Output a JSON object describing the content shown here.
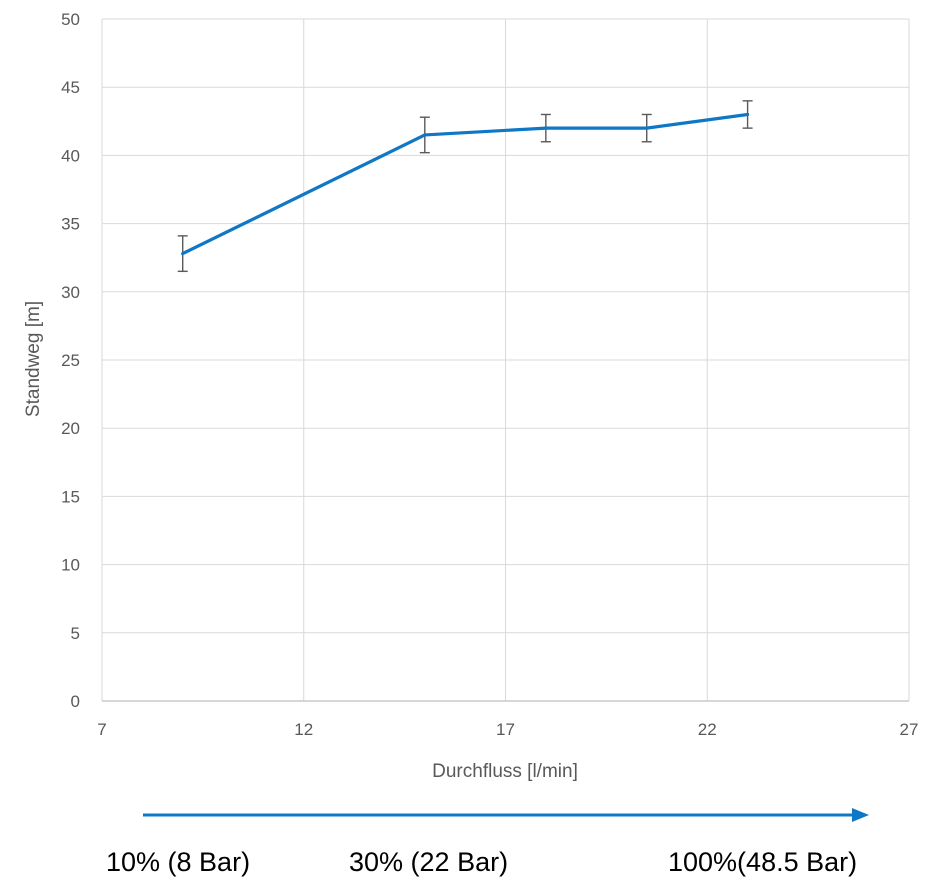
{
  "chart_data": {
    "type": "line",
    "title": "",
    "xlabel": "Durchfluss [l/min]",
    "ylabel": "Standweg [m]",
    "xlim": [
      7,
      27
    ],
    "ylim": [
      0,
      50
    ],
    "x_ticks": [
      7,
      12,
      17,
      22,
      27
    ],
    "y_ticks": [
      0,
      5,
      10,
      15,
      20,
      25,
      30,
      35,
      40,
      45,
      50
    ],
    "grid": true,
    "legend": "none",
    "series": [
      {
        "color": "#0e77c6",
        "points": [
          {
            "x": 9,
            "y": 32.8,
            "err": 1.3
          },
          {
            "x": 15,
            "y": 41.5,
            "err": 1.3
          },
          {
            "x": 18,
            "y": 42.0,
            "err": 1.0
          },
          {
            "x": 20.5,
            "y": 42.0,
            "err": 1.0
          },
          {
            "x": 23,
            "y": 43.0,
            "err": 1.0
          }
        ]
      }
    ]
  },
  "annotations": {
    "arrow_color": "#0e77c6",
    "notes": [
      "10% (8 Bar)",
      "30% (22 Bar)",
      "100%(48.5 Bar)"
    ]
  }
}
